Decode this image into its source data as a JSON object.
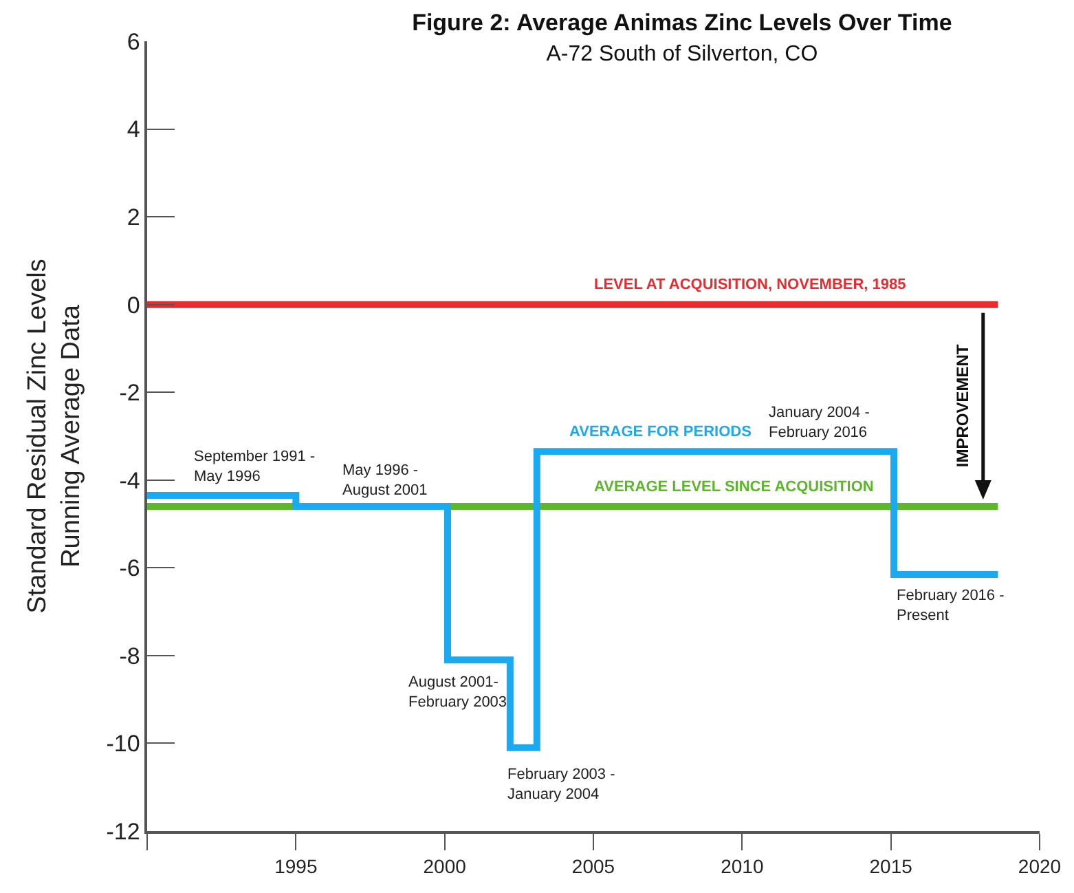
{
  "chart_data": {
    "type": "step",
    "title": "Figure 2: Average Animas Zinc Levels Over Time",
    "subtitle": "A-72 South of Silverton, CO",
    "ylabel": "Standard Residual Zinc Levels\nRunning Average Data",
    "x": [
      1990,
      1995,
      2000.1,
      2002.2,
      2003.1,
      2015.1,
      2018.6
    ],
    "series": [
      {
        "name": "AVERAGE FOR PERIODS",
        "color": "#1ba9f0",
        "values": [
          -4.35,
          -4.6,
          -8.1,
          -10.1,
          -3.35,
          -6.15,
          -6.15
        ]
      }
    ],
    "xlim": [
      1990,
      2020
    ],
    "xticks": [
      {
        "value": 1990,
        "label": null
      },
      1995,
      2000,
      2005,
      2010,
      2015,
      2020
    ],
    "ylim": [
      -12,
      6
    ],
    "yticks": [
      -12,
      -10,
      -8,
      -6,
      -4,
      -2,
      0,
      2,
      4,
      6
    ],
    "ref_lines": [
      {
        "axis": "y",
        "value": 0,
        "label": "LEVEL AT ACQUISITION, NOVEMBER, 1985",
        "color": "#ec2a2e"
      },
      {
        "axis": "y",
        "value": -4.6,
        "label": "AVERAGE LEVEL SINCE ACQUISITION",
        "color": "#5cb82a"
      }
    ],
    "annotations": [
      "September 1991 -\nMay 1996",
      "May 1996 -\nAugust 2001",
      "August 2001-\nFebruary 2003",
      "February 2003 -\nJanuary 2004",
      "January 2004 -\nFebruary 2016",
      "February 2016 -\nPresent",
      {
        "text": "IMPROVEMENT",
        "x": 2018.1,
        "y": -4.6
      }
    ],
    "grid": false,
    "legend": false,
    "marker": "none",
    "line_style": "solid"
  }
}
